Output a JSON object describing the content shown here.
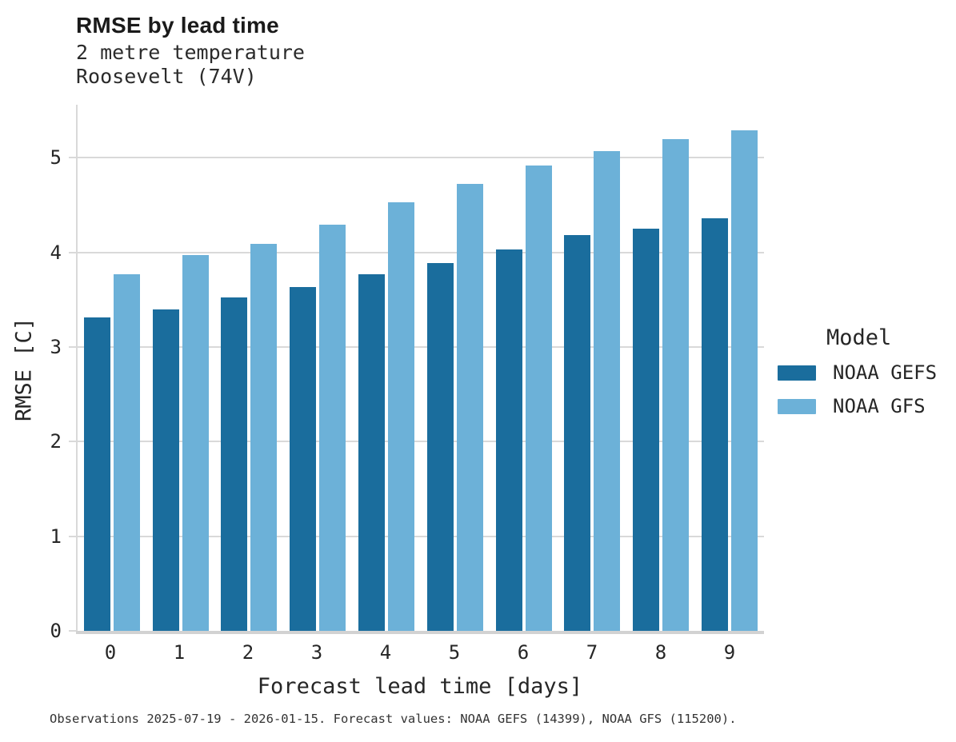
{
  "header": {
    "title": "RMSE by lead time",
    "subtitle_line1": "2 metre temperature",
    "subtitle_line2": "Roosevelt (74V)"
  },
  "footnote": "Observations 2025-07-19 - 2026-01-15. Forecast values: NOAA GEFS (14399), NOAA GFS (115200).",
  "legend": {
    "title": "Model",
    "items": [
      {
        "label": "NOAA GEFS",
        "color": "#1a6d9d"
      },
      {
        "label": "NOAA GFS",
        "color": "#6cb1d8"
      }
    ]
  },
  "colors": {
    "gefs_bar": "#1a6d9d",
    "gfs_bar": "#6cb1d8",
    "gridline": "#d9d9d9",
    "text": "#262626"
  },
  "chart_data": {
    "type": "bar",
    "title": "RMSE by lead time",
    "subtitle": [
      "2 metre temperature",
      "Roosevelt (74V)"
    ],
    "categories": [
      "0",
      "1",
      "2",
      "3",
      "4",
      "5",
      "6",
      "7",
      "8",
      "9"
    ],
    "series": [
      {
        "name": "NOAA GEFS",
        "color": "#1a6d9d",
        "values": [
          3.31,
          3.4,
          3.52,
          3.63,
          3.77,
          3.89,
          4.03,
          4.18,
          4.25,
          4.36
        ]
      },
      {
        "name": "NOAA GFS",
        "color": "#6cb1d8",
        "values": [
          3.77,
          3.97,
          4.09,
          4.29,
          4.53,
          4.72,
          4.92,
          5.07,
          5.2,
          5.29
        ]
      }
    ],
    "xlabel": "Forecast lead time [days]",
    "ylabel": "RMSE [C]",
    "ylim": [
      0,
      5.56
    ],
    "yticks": [
      "0",
      "1",
      "2",
      "3",
      "4",
      "5"
    ],
    "grid": true,
    "legend_title": "Model",
    "legend_position": "right"
  }
}
